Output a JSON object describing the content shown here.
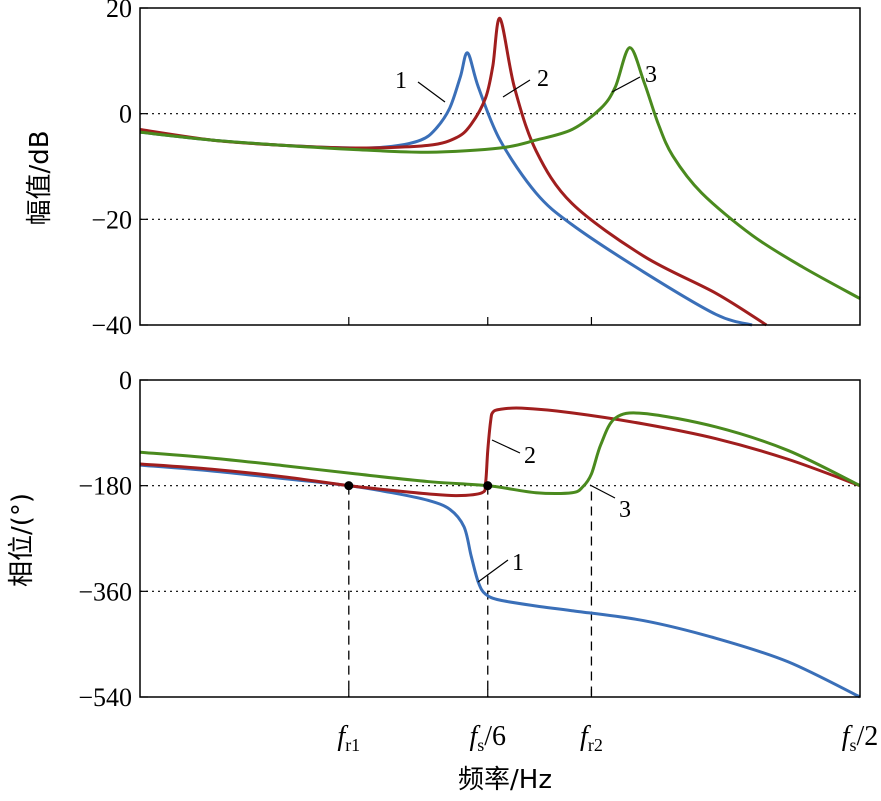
{
  "chart_data": [
    {
      "type": "line",
      "ylabel": "幅值/dB",
      "ylim": [
        -40,
        20
      ],
      "yticks": [
        "20",
        "0",
        "−20",
        "−40"
      ],
      "ytick_values": [
        20,
        0,
        -20,
        -40
      ],
      "xlim": [
        0,
        1
      ],
      "grid": "dotted horizontal at 0 and −20",
      "series": [
        {
          "name": "1",
          "color": "#3a6fb8",
          "x": [
            0,
            0.1,
            0.2,
            0.3,
            0.35,
            0.39,
            0.41,
            0.43,
            0.445,
            0.455,
            0.47,
            0.5,
            0.55,
            0.6,
            0.7,
            0.8,
            0.85
          ],
          "values": [
            -3.5,
            -5,
            -6,
            -6.5,
            -6.2,
            -5,
            -3,
            1,
            7,
            11.5,
            5,
            -5,
            -15,
            -21,
            -30,
            -38,
            -40
          ]
        },
        {
          "name": "2",
          "color": "#a01e1e",
          "x": [
            0,
            0.1,
            0.2,
            0.3,
            0.4,
            0.44,
            0.46,
            0.48,
            0.49,
            0.5,
            0.52,
            0.55,
            0.6,
            0.7,
            0.8,
            0.87
          ],
          "values": [
            -3,
            -5,
            -6,
            -6.5,
            -6,
            -4.5,
            -2,
            3,
            9,
            18,
            5,
            -7,
            -17,
            -27,
            -34,
            -40
          ]
        },
        {
          "name": "3",
          "color": "#4a8a1e",
          "x": [
            0,
            0.1,
            0.2,
            0.3,
            0.4,
            0.5,
            0.55,
            0.6,
            0.64,
            0.66,
            0.68,
            0.7,
            0.72,
            0.74,
            0.78,
            0.85,
            0.92,
            1.0
          ],
          "values": [
            -3.5,
            -5,
            -6,
            -6.8,
            -7.3,
            -6.5,
            -5,
            -3,
            1,
            5,
            12.5,
            6,
            -2,
            -8,
            -15,
            -23,
            -29,
            -35
          ]
        }
      ],
      "annotations": [
        "1",
        "2",
        "3"
      ]
    },
    {
      "type": "line",
      "ylabel": "相位/(°)",
      "ylim": [
        -540,
        0
      ],
      "yticks": [
        "0",
        "−180",
        "−360",
        "−540"
      ],
      "ytick_values": [
        0,
        -180,
        -360,
        -540
      ],
      "xlabel": "频率/Hz",
      "xlim": [
        0,
        1
      ],
      "xtick_values": [
        0.29,
        0.483,
        0.627,
        1.0
      ],
      "grid": "dotted horizontal at −180 and −360",
      "series": [
        {
          "name": "1",
          "color": "#3a6fb8",
          "x": [
            0,
            0.1,
            0.2,
            0.29,
            0.35,
            0.4,
            0.43,
            0.45,
            0.46,
            0.47,
            0.48,
            0.5,
            0.55,
            0.6,
            0.7,
            0.8,
            0.9,
            1.0
          ],
          "values": [
            -145,
            -155,
            -168,
            -180,
            -192,
            -205,
            -220,
            -250,
            -300,
            -345,
            -365,
            -375,
            -385,
            -393,
            -410,
            -440,
            -480,
            -540
          ]
        },
        {
          "name": "2",
          "color": "#a01e1e",
          "x": [
            0,
            0.1,
            0.2,
            0.29,
            0.35,
            0.4,
            0.44,
            0.475,
            0.48,
            0.483,
            0.487,
            0.49,
            0.5,
            0.53,
            0.6,
            0.7,
            0.8,
            0.9,
            1.0
          ],
          "values": [
            -143,
            -152,
            -165,
            -180,
            -188,
            -194,
            -197,
            -192,
            -175,
            -120,
            -70,
            -55,
            -50,
            -48,
            -56,
            -75,
            -100,
            -135,
            -180
          ]
        },
        {
          "name": "3",
          "color": "#4a8a1e",
          "x": [
            0,
            0.1,
            0.2,
            0.3,
            0.4,
            0.483,
            0.55,
            0.6,
            0.615,
            0.627,
            0.64,
            0.66,
            0.7,
            0.8,
            0.9,
            1.0
          ],
          "values": [
            -123,
            -133,
            -146,
            -160,
            -173,
            -180,
            -192,
            -192,
            -182,
            -160,
            -110,
            -65,
            -57,
            -80,
            -120,
            -180
          ]
        }
      ],
      "points": [
        {
          "x": 0.29,
          "y": -180
        },
        {
          "x": 0.483,
          "y": -180
        }
      ],
      "annotations": [
        "1",
        "2",
        "3"
      ]
    }
  ],
  "xticks": [
    {
      "main": "f",
      "sub": "r1",
      "rest": ""
    },
    {
      "main": "f",
      "sub": "s",
      "rest": "/6"
    },
    {
      "main": "f",
      "sub": "r2",
      "rest": ""
    },
    {
      "main": "f",
      "sub": "s",
      "rest": "/2"
    }
  ],
  "labels": {
    "top_ylabel": "幅值/dB",
    "bottom_ylabel": "相位/(°)",
    "xlabel": "频率/Hz",
    "curve1": "1",
    "curve2": "2",
    "curve3": "3"
  }
}
